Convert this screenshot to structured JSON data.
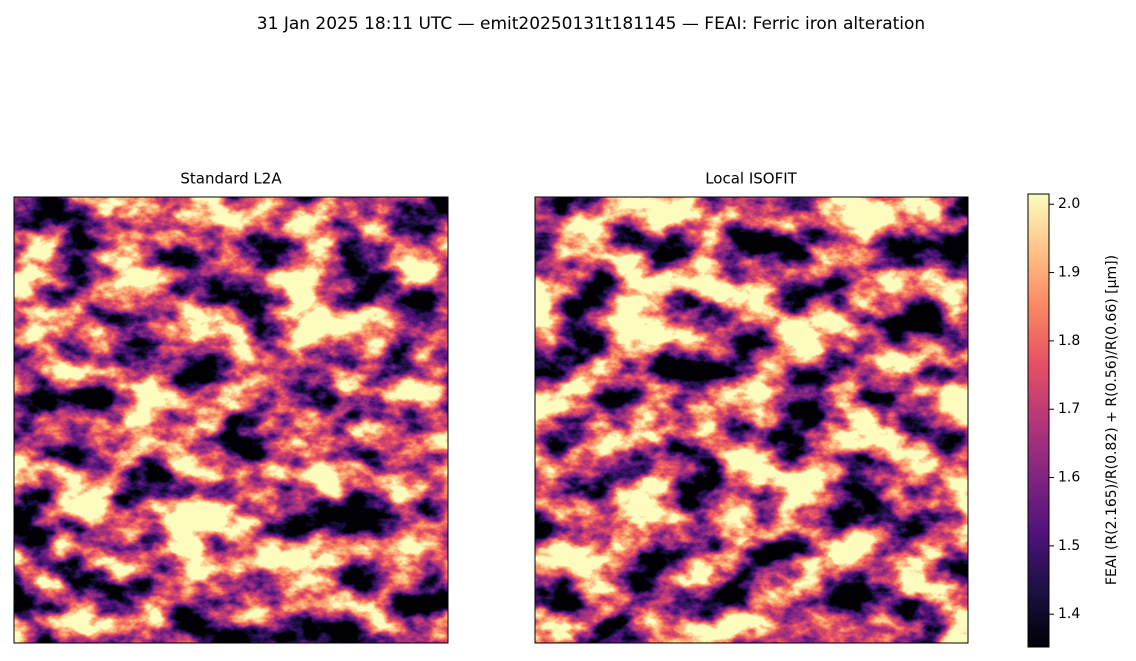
{
  "chart_data": {
    "type": "image",
    "title": "31 Jan 2025 18:11 UTC — emit20250131t181145 — FEAI: Ferric iron alteration",
    "panels": [
      {
        "title": "Standard L2A"
      },
      {
        "title": "Local ISOFIT"
      }
    ],
    "colormap": "magma",
    "colorbar": {
      "label": "FEAI  (R(2.165)/R(0.82) + R(0.56)/R(0.66)  [µm])",
      "ylim": [
        1.352,
        2.015
      ],
      "yticks": [
        1.4,
        1.5,
        1.6,
        1.7,
        1.8,
        1.9,
        {
          "value": 2.0,
          "label": "2.0"
        }
      ]
    }
  }
}
